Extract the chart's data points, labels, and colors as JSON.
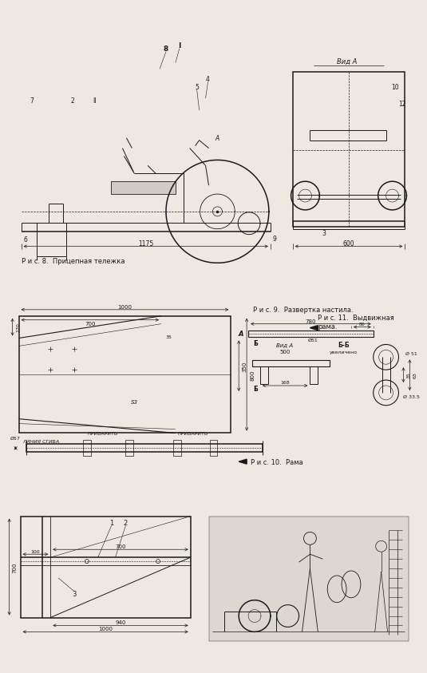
{
  "fig_width": 5.17,
  "fig_height": 8.31,
  "bg_color": "#ede8e0",
  "line_color": "#1a1a1a",
  "fig8_caption": "Р и с. 8.  Прицепная тележка",
  "fig9_caption": "Р и с. 9.  Развертка настила.",
  "fig10_caption": "Р и с. 10.  Рама",
  "fig11_caption_1": "Р и с. 11.  Выдвижная",
  "fig11_caption_2": "рама.",
  "dim_1175": "1175",
  "dim_600": "600",
  "dim_1000": "1000",
  "dim_700": "700",
  "dim_170": "170",
  "dim_350": "350",
  "dim_800": "800",
  "dim_35": "35",
  "dim_S3": "S3",
  "linia_sgiba": "ЛИНИЯ СГИБА",
  "privarit1": "ПРИВАРИТЬ",
  "privarit2": "ПРИВАРИТЬ",
  "dia57": "Ø57",
  "dim_780": "780",
  "dim_80": "80",
  "dim_500": "500",
  "dim_168": "168",
  "dim_35b": "35",
  "dim_63": "63",
  "dia51a": "Ø51",
  "dia51b": "Ø 51",
  "dia33": "Ø 33.5",
  "vid_A_top": "Вид А",
  "vid_A": "Вид A",
  "BB": "Б-Б",
  "BB_uv": "увеличено",
  "A_label": "A",
  "B_label": "Б",
  "dim_700_fig12": "700",
  "dim_100": "100",
  "dim_700h": "700",
  "dim_940": "940",
  "dim_1000b": "1000",
  "label1": "1",
  "label2": "2",
  "label3": "3"
}
